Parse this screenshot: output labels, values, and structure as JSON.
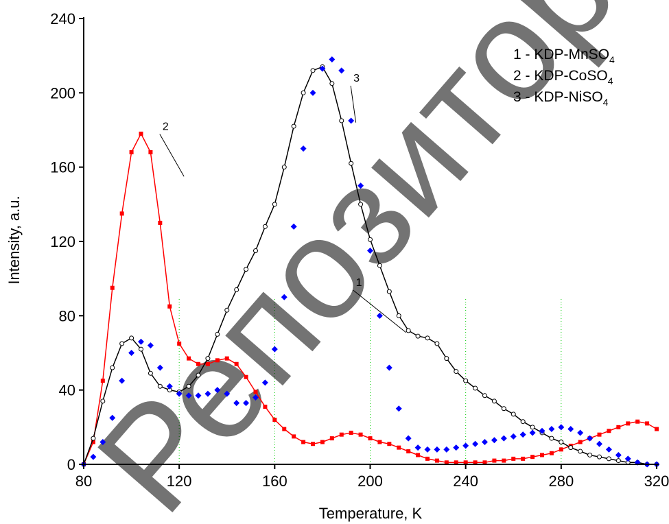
{
  "watermark": "Репозиторий кар",
  "chart_data": {
    "type": "line",
    "xlabel": "Temperature, K",
    "ylabel": "Intensity, a.u.",
    "xlim": [
      80,
      320
    ],
    "ylim": [
      0,
      240
    ],
    "xticks": [
      80,
      120,
      160,
      200,
      240,
      280,
      320
    ],
    "yticks": [
      0,
      40,
      80,
      120,
      160,
      200,
      240
    ],
    "vertical_gridlines_at": [
      120,
      160,
      200,
      240,
      280
    ],
    "grid_color": "#00cc00",
    "legend": {
      "placement": "top-right",
      "entries": [
        {
          "prefix": "1 - KDP-MnSO",
          "subscript": "4"
        },
        {
          "prefix": "2 - KDP-CoSO",
          "subscript": "4"
        },
        {
          "prefix": "3 - KDP-NiSO",
          "subscript": "4"
        }
      ]
    },
    "series": [
      {
        "id": "1",
        "color": "#000000",
        "marker": "open-circle",
        "label_position": [
          194,
          96
        ],
        "label_tip": [
          215,
          71
        ],
        "x": [
          80,
          84,
          88,
          92,
          96,
          100,
          104,
          108,
          112,
          116,
          120,
          124,
          128,
          132,
          136,
          140,
          144,
          148,
          152,
          156,
          160,
          164,
          168,
          172,
          176,
          180,
          184,
          188,
          192,
          196,
          200,
          204,
          208,
          212,
          216,
          220,
          224,
          228,
          232,
          236,
          240,
          244,
          248,
          252,
          256,
          260,
          264,
          268,
          272,
          276,
          280,
          284,
          288,
          292,
          296,
          300,
          304,
          308,
          312,
          316,
          320
        ],
        "y": [
          0,
          14,
          34,
          52,
          65,
          68,
          62,
          49,
          42,
          40,
          39,
          42,
          48,
          57,
          70,
          83,
          94,
          105,
          115,
          128,
          140,
          160,
          182,
          200,
          212,
          214,
          205,
          185,
          162,
          140,
          121,
          107,
          93,
          80,
          72,
          69,
          68,
          65,
          57,
          50,
          45,
          41,
          37,
          34,
          30,
          27,
          23,
          20,
          17,
          14,
          12,
          9,
          7,
          5,
          4,
          3,
          2,
          1,
          1,
          0,
          0
        ]
      },
      {
        "id": "2",
        "color": "#ff0000",
        "marker": "square",
        "label_position": [
          113,
          180
        ],
        "label_tip": [
          122,
          155
        ],
        "x": [
          80,
          84,
          88,
          92,
          96,
          100,
          104,
          108,
          112,
          116,
          120,
          124,
          128,
          132,
          136,
          140,
          144,
          148,
          152,
          156,
          160,
          164,
          168,
          172,
          176,
          180,
          184,
          188,
          192,
          196,
          200,
          204,
          208,
          212,
          216,
          220,
          224,
          228,
          232,
          236,
          240,
          244,
          248,
          252,
          256,
          260,
          264,
          268,
          272,
          276,
          280,
          284,
          288,
          292,
          296,
          300,
          304,
          308,
          312,
          316,
          320
        ],
        "y": [
          0,
          12,
          45,
          95,
          135,
          168,
          178,
          168,
          130,
          85,
          65,
          57,
          54,
          54,
          56,
          57,
          54,
          47,
          39,
          31,
          24,
          19,
          15,
          12,
          11,
          12,
          14,
          16,
          17,
          16,
          14,
          12,
          11,
          9,
          7,
          5,
          3,
          2,
          1,
          1,
          1,
          1,
          1,
          2,
          2,
          3,
          3,
          4,
          5,
          6,
          8,
          10,
          12,
          14,
          16,
          18,
          20,
          22,
          23,
          22,
          19
        ]
      },
      {
        "id": "3",
        "color": "#0000ff",
        "marker": "diamond",
        "label_position": [
          193,
          206
        ],
        "label_tip": [
          194,
          184
        ],
        "x": [
          80,
          84,
          88,
          92,
          96,
          100,
          104,
          108,
          112,
          116,
          120,
          124,
          128,
          132,
          136,
          140,
          144,
          148,
          152,
          156,
          160,
          164,
          168,
          172,
          176,
          180,
          184,
          188,
          192,
          196,
          200,
          204,
          208,
          212,
          216,
          220,
          224,
          228,
          232,
          236,
          240,
          244,
          248,
          252,
          256,
          260,
          264,
          268,
          272,
          276,
          280,
          284,
          288,
          292,
          296,
          300,
          304,
          308,
          312,
          316,
          320
        ],
        "y": [
          0,
          4,
          12,
          25,
          45,
          60,
          66,
          64,
          52,
          42,
          38,
          37,
          37,
          38,
          40,
          38,
          33,
          33,
          36,
          44,
          62,
          90,
          128,
          170,
          200,
          213,
          218,
          212,
          185,
          150,
          115,
          80,
          52,
          30,
          14,
          9,
          8,
          8,
          8,
          9,
          10,
          11,
          12,
          13,
          14,
          15,
          16,
          17,
          18,
          19,
          20,
          19,
          17,
          14,
          11,
          8,
          5,
          3,
          1,
          0,
          0
        ]
      }
    ]
  }
}
